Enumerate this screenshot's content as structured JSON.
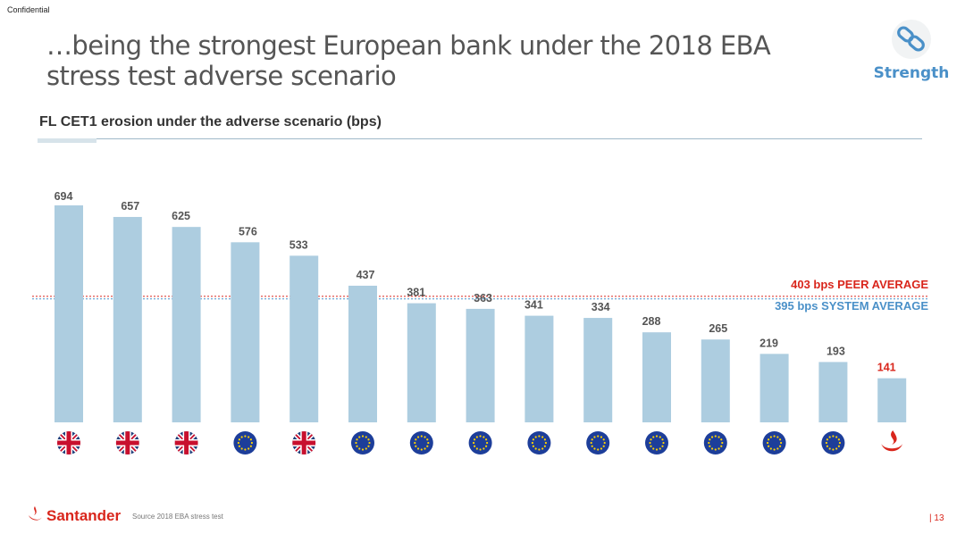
{
  "header": {
    "confidential": "Confidential",
    "title": "…being the strongest European bank under the 2018 EBA stress test adverse scenario",
    "badge_label": "Strength",
    "badge_icon": "chain-link-icon"
  },
  "chart_data": {
    "type": "bar",
    "title": "FL CET1 erosion under the adverse scenario (bps)",
    "values": [
      694,
      657,
      625,
      576,
      533,
      437,
      381,
      363,
      341,
      334,
      288,
      265,
      219,
      193,
      141
    ],
    "markers": [
      "uk-flag-icon",
      "uk-flag-icon",
      "uk-flag-icon",
      "eu-flag-icon",
      "uk-flag-icon",
      "eu-flag-icon",
      "eu-flag-icon",
      "eu-flag-icon",
      "eu-flag-icon",
      "eu-flag-icon",
      "eu-flag-icon",
      "eu-flag-icon",
      "eu-flag-icon",
      "eu-flag-icon",
      "santander-flame-icon"
    ],
    "ylim": [
      0,
      720
    ],
    "reference_lines": [
      {
        "value": 403,
        "label": "403 bps PEER AVERAGE",
        "color": "#d9261c"
      },
      {
        "value": 395,
        "label": "395 bps SYSTEM AVERAGE",
        "color": "#4a90c8"
      }
    ],
    "bar_color": "#adcde0",
    "highlight_color": "#d9261c",
    "label_color": "#555555"
  },
  "footer": {
    "brand": "Santander",
    "source": "Source 2018 EBA stress test",
    "page": "| 13"
  }
}
